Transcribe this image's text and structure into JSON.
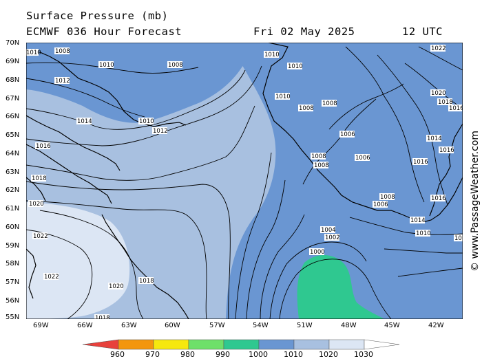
{
  "header": {
    "title": "Surface Pressure (mb)",
    "model": "ECMWF 036 Hour Forecast",
    "date": "Fri 02 May 2025",
    "time": "12 UTC"
  },
  "credit": "© www.PassageWeather.com",
  "axes": {
    "lat_labels": [
      "70N",
      "69N",
      "68N",
      "67N",
      "66N",
      "65N",
      "64N",
      "63N",
      "62N",
      "61N",
      "60N",
      "59N",
      "58N",
      "57N",
      "56N",
      "55N"
    ],
    "lon_labels": [
      "69W",
      "66W",
      "63W",
      "60W",
      "57W",
      "54W",
      "51W",
      "48W",
      "45W",
      "42W"
    ]
  },
  "isobar_labels": [
    "1010",
    "1008",
    "1010",
    "1008",
    "1010",
    "1010",
    "1012",
    "1010",
    "1008",
    "1008",
    "1014",
    "1010",
    "1012",
    "1016",
    "1006",
    "1008",
    "1008",
    "1006",
    "1018",
    "1020",
    "1022",
    "1022",
    "1020",
    "1018",
    "1004",
    "1002",
    "1000",
    "1008",
    "1006",
    "1016",
    "1014",
    "1016",
    "1014",
    "1016",
    "1010",
    "1022",
    "1020",
    "1018",
    "1016",
    "1016",
    "1018"
  ],
  "colorscale": {
    "labels": [
      "960",
      "970",
      "980",
      "990",
      "1000",
      "1010",
      "1020",
      "1030"
    ],
    "colors": [
      "#e8413c",
      "#f3960d",
      "#f6e80e",
      "#6ee06a",
      "#2fc890",
      "#6a96d2",
      "#a8c0e0",
      "#dce6f4"
    ]
  }
}
